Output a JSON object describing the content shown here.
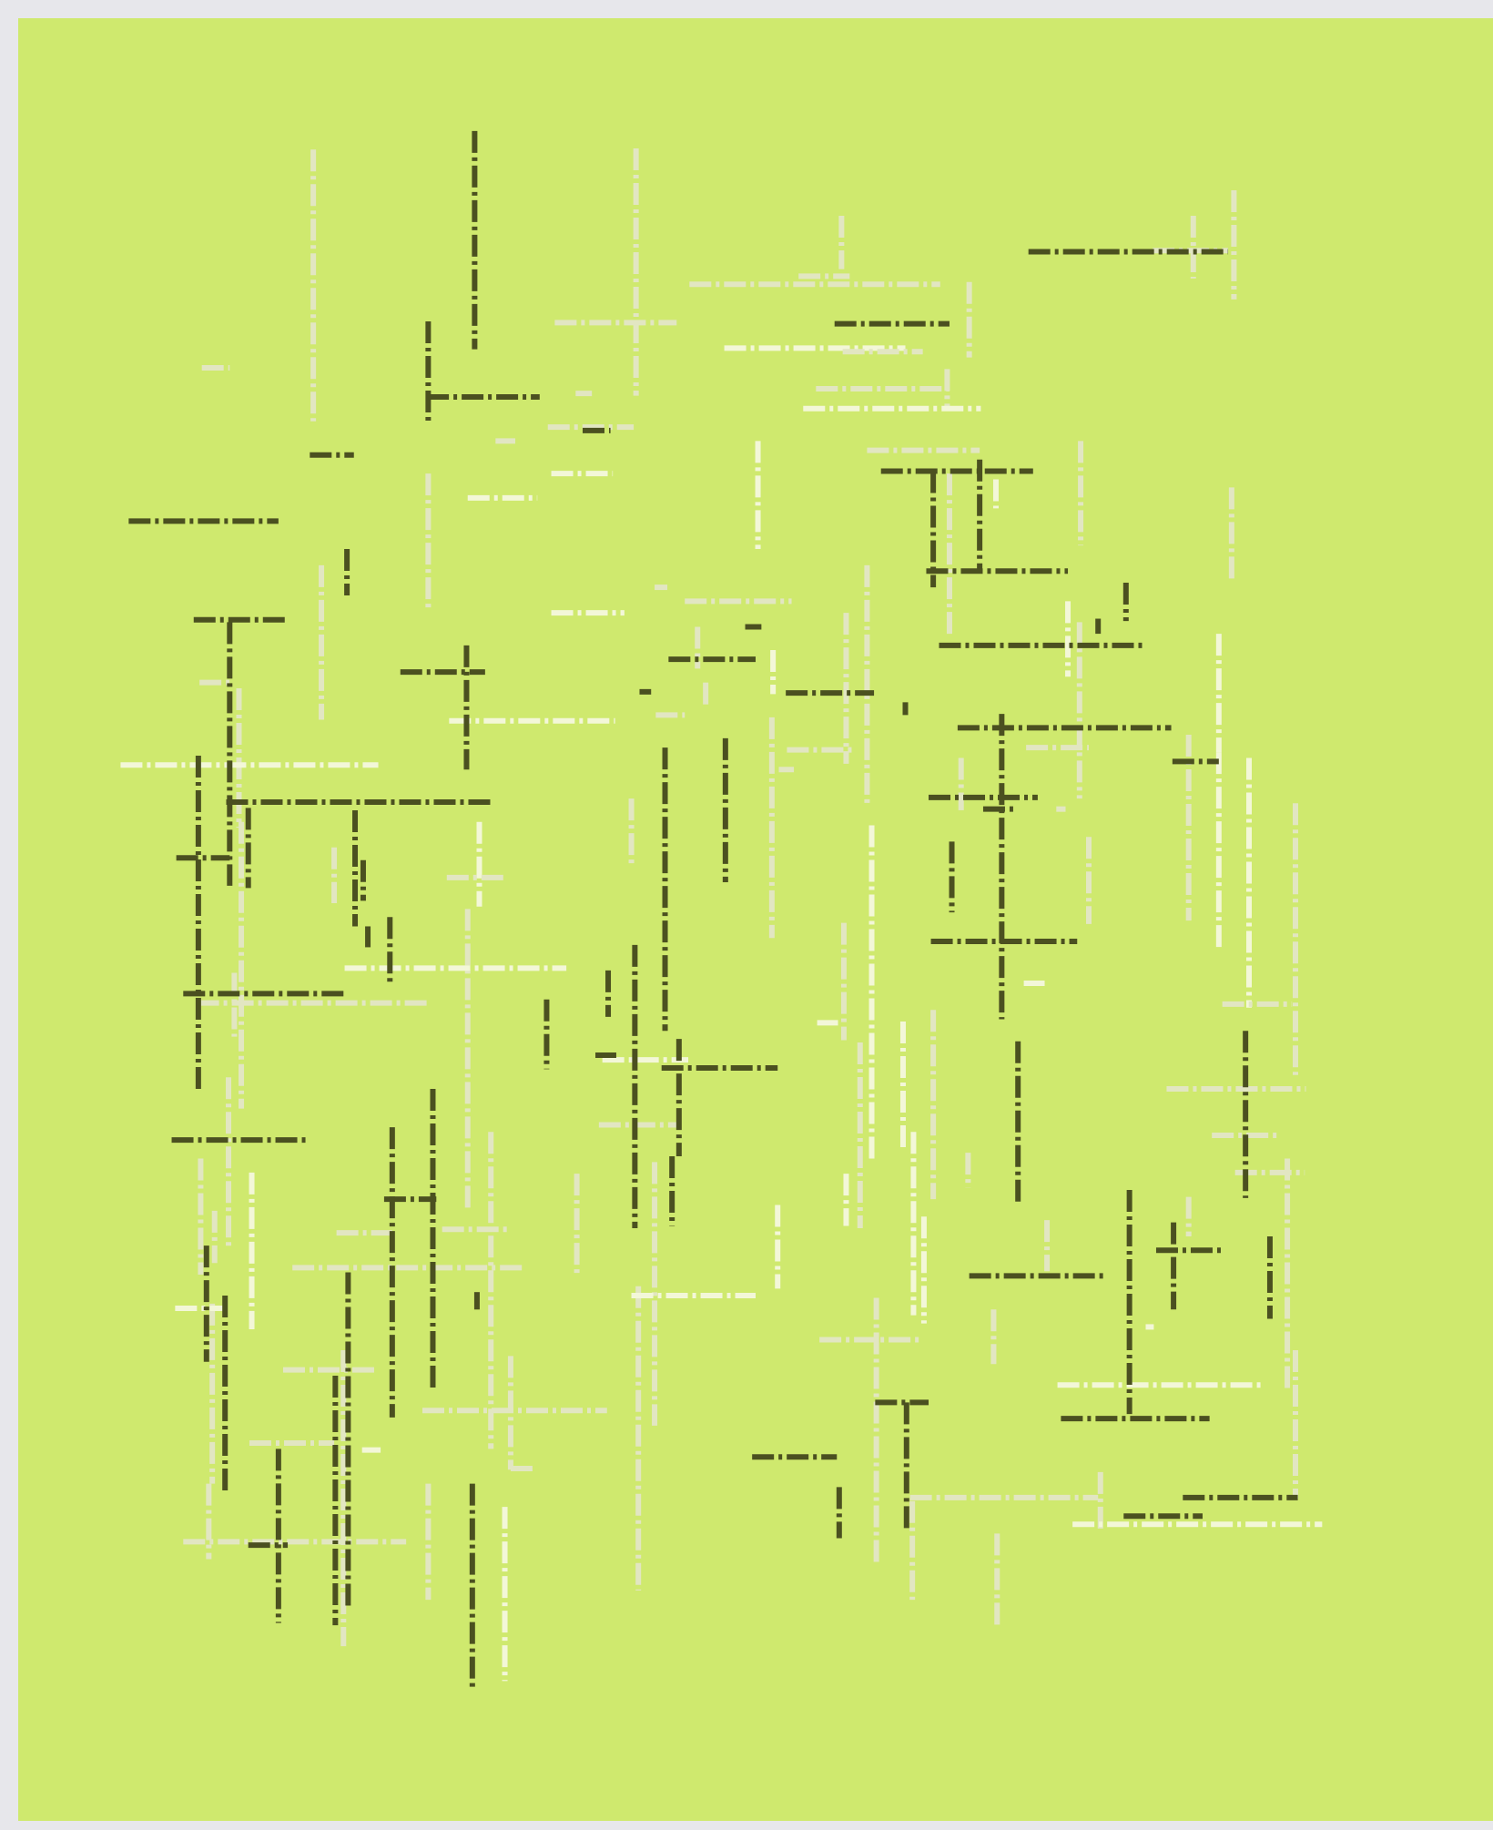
{
  "artwork": {
    "background_color": "#cfe96e",
    "frame_color": "#e7e7eb",
    "line_colors": {
      "dark": "#4b5020",
      "light": "#e2e6c2",
      "bright": "#f3f7d8"
    },
    "line_style": "dash-dot"
  }
}
